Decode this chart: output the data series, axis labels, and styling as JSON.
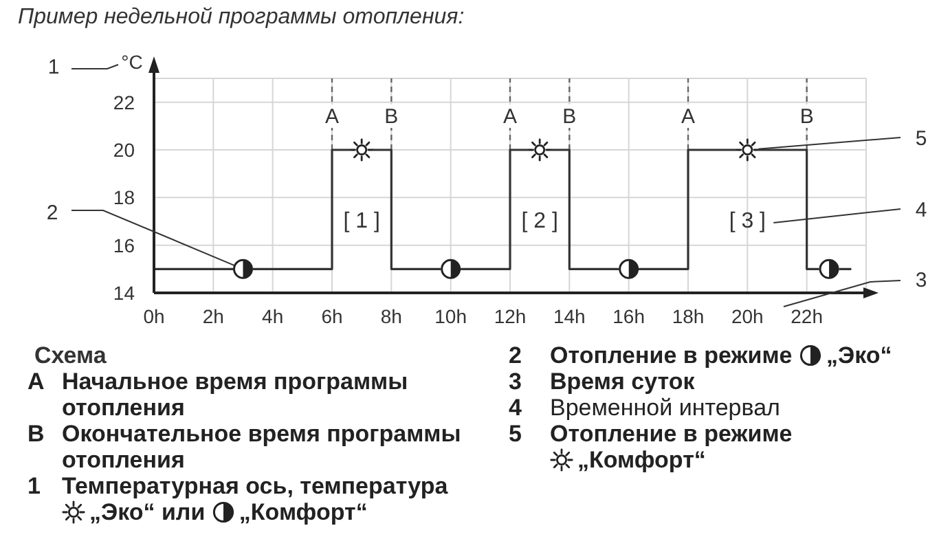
{
  "chart_data": {
    "type": "step",
    "title": "Пример недельной программы отопления:",
    "ylabel": "°C",
    "x": [
      0,
      6,
      8,
      12,
      14,
      18,
      22,
      23.5
    ],
    "values": [
      15,
      20,
      15,
      20,
      15,
      20,
      15,
      15
    ],
    "color": "#333333",
    "xlim": [
      0,
      24
    ],
    "xticks": [
      {
        "value": 0,
        "label": "0h"
      },
      {
        "value": 2,
        "label": "2h"
      },
      {
        "value": 4,
        "label": "4h"
      },
      {
        "value": 6,
        "label": "6h"
      },
      {
        "value": 8,
        "label": "8h"
      },
      {
        "value": 10,
        "label": "10h"
      },
      {
        "value": 12,
        "label": "12h"
      },
      {
        "value": 14,
        "label": "14h"
      },
      {
        "value": 16,
        "label": "16h"
      },
      {
        "value": 18,
        "label": "18h"
      },
      {
        "value": 20,
        "label": "20h"
      },
      {
        "value": 22,
        "label": "22h"
      }
    ],
    "ylim": [
      14,
      23
    ],
    "yticks": [
      14,
      16,
      18,
      20,
      22
    ],
    "grid": true,
    "ref_lines": [
      {
        "axis": "x",
        "value": 6,
        "label": "A",
        "color": "#666666",
        "line_style": "dashed"
      },
      {
        "axis": "x",
        "value": 8,
        "label": "B",
        "color": "#666666",
        "line_style": "dashed"
      },
      {
        "axis": "x",
        "value": 12,
        "label": "A",
        "color": "#666666",
        "line_style": "dashed"
      },
      {
        "axis": "x",
        "value": 14,
        "label": "B",
        "color": "#666666",
        "line_style": "dashed"
      },
      {
        "axis": "x",
        "value": 18,
        "label": "A",
        "color": "#666666",
        "line_style": "dashed"
      },
      {
        "axis": "x",
        "value": 22,
        "label": "B",
        "color": "#666666",
        "line_style": "dashed"
      }
    ],
    "annotations": [
      "1",
      {
        "text": "2",
        "x": 3,
        "y": 15
      },
      "3",
      "4",
      {
        "text": "5",
        "x": 20,
        "y": 20
      },
      "[ 1 ]",
      "[ 2 ]",
      "[ 3 ]",
      "Схема",
      "A",
      "Начальное время программы отопления",
      "B",
      "Окончательное время программы отопления",
      "1",
      "Температурная ось, температура",
      "„Эко“ или",
      "„Комфорт“",
      "2",
      "Отопление в режиме",
      "„Эко“",
      "3",
      "Время суток",
      "4",
      "Временной интервал",
      "5",
      "Отопление в режиме",
      "„Комфорт“"
    ]
  }
}
